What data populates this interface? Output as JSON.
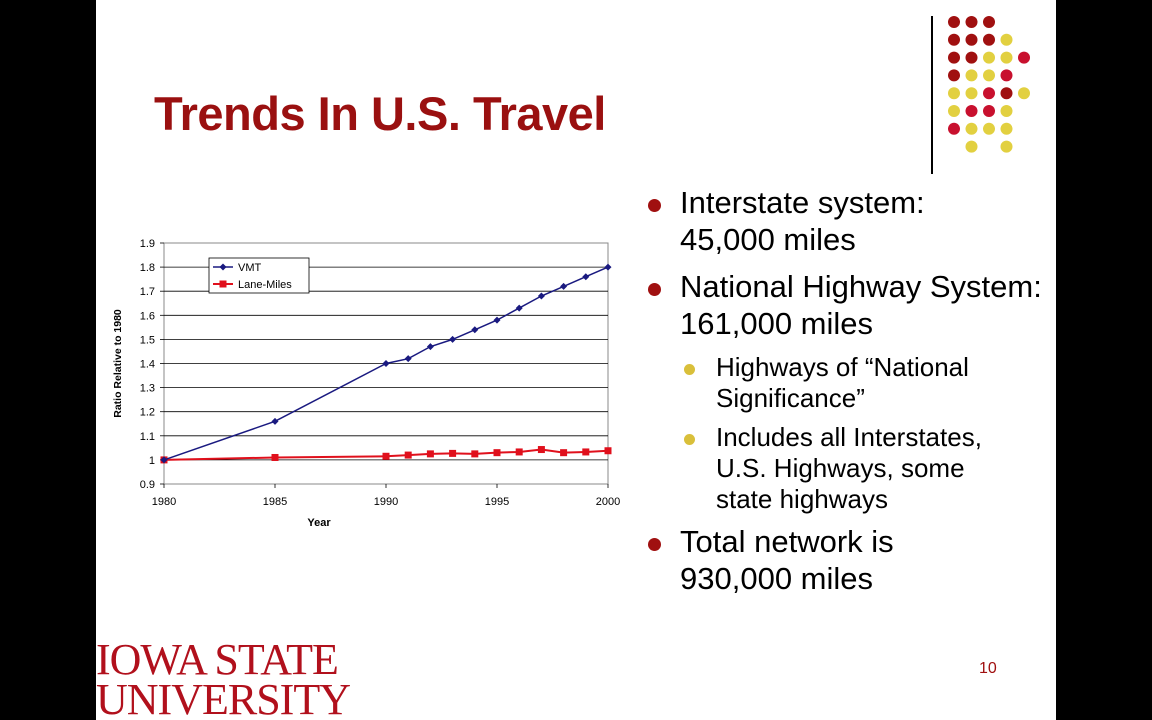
{
  "slide": {
    "title": "Trends In U.S. Travel",
    "page_number": "10",
    "logo_text": [
      "IOWA STATE",
      "UNIVERSITY"
    ],
    "colors": {
      "title": "#9a1010",
      "bullet_l1": "#a01010",
      "bullet_l2": "#d9bf3a",
      "dot_red": "#c8102e",
      "dot_dark": "#a01010",
      "dot_yellow": "#e2d040"
    },
    "decoration_icon": "dot-grid-icon"
  },
  "bullets": [
    {
      "level": 1,
      "text": "Interstate system: 45,000 miles"
    },
    {
      "level": 1,
      "text": "National Highway System: 161,000 miles"
    },
    {
      "level": 2,
      "text": "Highways of “National Significance”"
    },
    {
      "level": 2,
      "text": "Includes all Interstates, U.S. Highways, some state highways"
    },
    {
      "level": 1,
      "text": "Total network is 930,000 miles"
    }
  ],
  "chart_data": {
    "type": "line",
    "title": "",
    "xlabel": "Year",
    "ylabel": "Ratio Relative to 1980",
    "xlim": [
      1980,
      2000
    ],
    "ylim": [
      0.9,
      1.9
    ],
    "x_ticks": [
      1980,
      1985,
      1990,
      1995,
      2000
    ],
    "y_ticks": [
      0.9,
      1,
      1.1,
      1.2,
      1.3,
      1.4,
      1.5,
      1.6,
      1.7,
      1.8,
      1.9
    ],
    "grid": true,
    "legend": "top-left",
    "series": [
      {
        "name": "VMT",
        "color": "#1a1a80",
        "marker": "diamond",
        "points": [
          [
            1980,
            1.0
          ],
          [
            1985,
            1.16
          ],
          [
            1990,
            1.4
          ],
          [
            1991,
            1.42
          ],
          [
            1992,
            1.47
          ],
          [
            1993,
            1.5
          ],
          [
            1994,
            1.54
          ],
          [
            1995,
            1.58
          ],
          [
            1996,
            1.63
          ],
          [
            1997,
            1.68
          ],
          [
            1998,
            1.72
          ],
          [
            1999,
            1.76
          ],
          [
            2000,
            1.8
          ]
        ]
      },
      {
        "name": "Lane-Miles",
        "color": "#e0101c",
        "marker": "square",
        "points": [
          [
            1980,
            1.0
          ],
          [
            1985,
            1.01
          ],
          [
            1990,
            1.015
          ],
          [
            1991,
            1.02
          ],
          [
            1992,
            1.025
          ],
          [
            1993,
            1.027
          ],
          [
            1994,
            1.025
          ],
          [
            1995,
            1.03
          ],
          [
            1996,
            1.033
          ],
          [
            1997,
            1.043
          ],
          [
            1998,
            1.03
          ],
          [
            1999,
            1.033
          ],
          [
            2000,
            1.038
          ]
        ]
      }
    ]
  }
}
